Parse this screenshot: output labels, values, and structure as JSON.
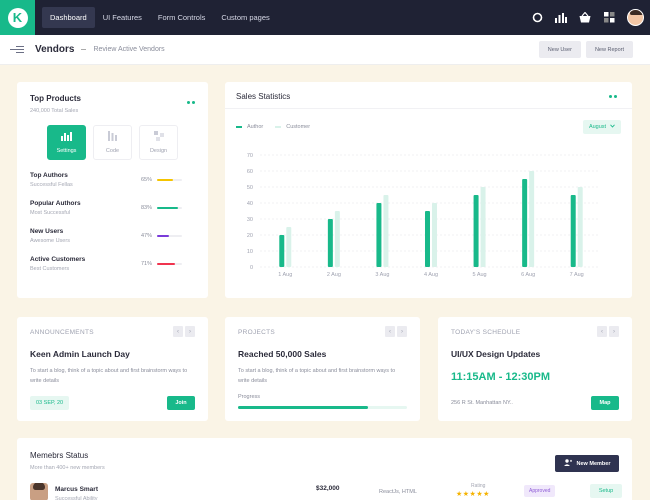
{
  "nav": {
    "logo_letter": "K",
    "links": [
      "Dashboard",
      "UI Features",
      "Form Controls",
      "Custom pages"
    ],
    "active_link": "Dashboard",
    "icons": [
      "search-icon",
      "chart-icon",
      "basket-icon",
      "grid-icon",
      "user-avatar"
    ]
  },
  "subheader": {
    "title": "Vendors",
    "subtitle": "Review Active Vendors",
    "btn_new_user": "New User",
    "btn_new_report": "New Report"
  },
  "top_products": {
    "title": "Top Products",
    "subtitle": "240,000 Total Sales",
    "tabs": [
      {
        "label": "Settings",
        "icon": "bar-chart-icon",
        "active": true
      },
      {
        "label": "Code",
        "icon": "code-icon",
        "active": false
      },
      {
        "label": "Design",
        "icon": "design-icon",
        "active": false
      }
    ],
    "rows": [
      {
        "name": "Top Authors",
        "desc": "Successful Fellas",
        "pct_label": "65%",
        "pct": 65,
        "color": "#f5c400"
      },
      {
        "name": "Popular Authors",
        "desc": "Most Successful",
        "pct_label": "83%",
        "pct": 83,
        "color": "#18b98a"
      },
      {
        "name": "New Users",
        "desc": "Awesome Users",
        "pct_label": "47%",
        "pct": 47,
        "color": "#7a3bd9"
      },
      {
        "name": "Active Customers",
        "desc": "Best Customers",
        "pct_label": "71%",
        "pct": 71,
        "color": "#f0344f"
      }
    ]
  },
  "sales": {
    "title": "Sales Statistics",
    "legend": [
      {
        "label": "Author",
        "color": "#18b98a"
      },
      {
        "label": "Customer",
        "color": "#d9f2ea"
      }
    ],
    "month": "August"
  },
  "chart_data": {
    "type": "bar",
    "categories": [
      "1 Aug",
      "2 Aug",
      "3 Aug",
      "4 Aug",
      "5 Aug",
      "6 Aug",
      "7 Aug"
    ],
    "series": [
      {
        "name": "Author",
        "values": [
          20,
          30,
          40,
          35,
          45,
          55,
          45
        ],
        "color": "#18b98a"
      },
      {
        "name": "Customer",
        "values": [
          25,
          35,
          45,
          40,
          50,
          60,
          50
        ],
        "color": "#d9f2ea"
      }
    ],
    "yticks": [
      0,
      10,
      20,
      30,
      40,
      50,
      60,
      70
    ],
    "ylim": [
      0,
      70
    ],
    "grid": true,
    "legend": "top-left"
  },
  "announcements": {
    "header": "ANNOUNCEMENTS",
    "title": "Keen Admin Launch Day",
    "text": "To start a blog, think of a topic about and first brainstorm ways to write details",
    "date": "03 SEP, 20",
    "button": "Join"
  },
  "projects": {
    "header": "PROJECTS",
    "title": "Reached 50,000 Sales",
    "text": "To start a blog, think of a topic about and first brainstorm ways to write details",
    "progress_label": "Progress",
    "progress": 0.77
  },
  "schedule": {
    "header": "TODAY'S SCHEDULE",
    "title": "UI/UX Design Updates",
    "time": "11:15AM - 12:30PM",
    "address": "256 R St. Manhattan NY..",
    "button": "Map"
  },
  "members": {
    "title": "Memebrs Status",
    "subtitle": "More than 400+ new members",
    "button": "New Member",
    "rows": [
      {
        "name": "Marcus Smart",
        "role": "Successful Ability",
        "amount": "$32,000",
        "tech": "ReactJs, HTML",
        "rating_label": "Rating",
        "stars": 5,
        "status": "Approved",
        "action": "Setup"
      }
    ]
  }
}
